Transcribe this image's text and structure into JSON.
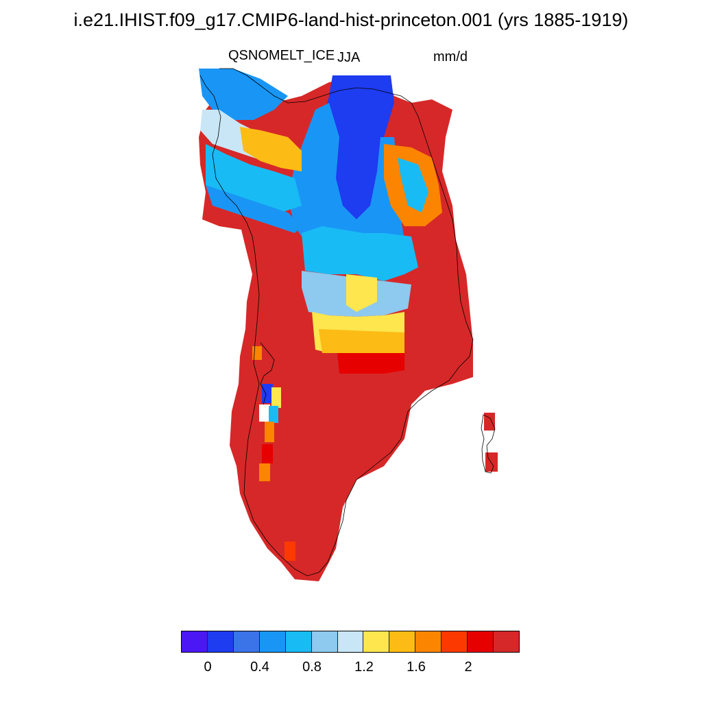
{
  "title": "i.e21.IHIST.f09_g17.CMIP6-land-hist-princeton.001 (yrs 1885-1919)",
  "variable": "QSNOMELT_ICE",
  "season": "JJA",
  "units": "mm/d",
  "map": {
    "region": "Greenland",
    "missing_color": "#ffffff",
    "coastline_color": "#000000"
  },
  "colorbar": {
    "colors": [
      "#4b17f5",
      "#1e3cf0",
      "#3a74e8",
      "#1996f5",
      "#19bbf5",
      "#8ec9ef",
      "#c8e6f6",
      "#fde64e",
      "#fcbc15",
      "#fc8500",
      "#fc3a00",
      "#e60000",
      "#d62828"
    ],
    "tick_labels": [
      "0",
      "0.4",
      "0.8",
      "1.2",
      "1.6",
      "2"
    ]
  }
}
